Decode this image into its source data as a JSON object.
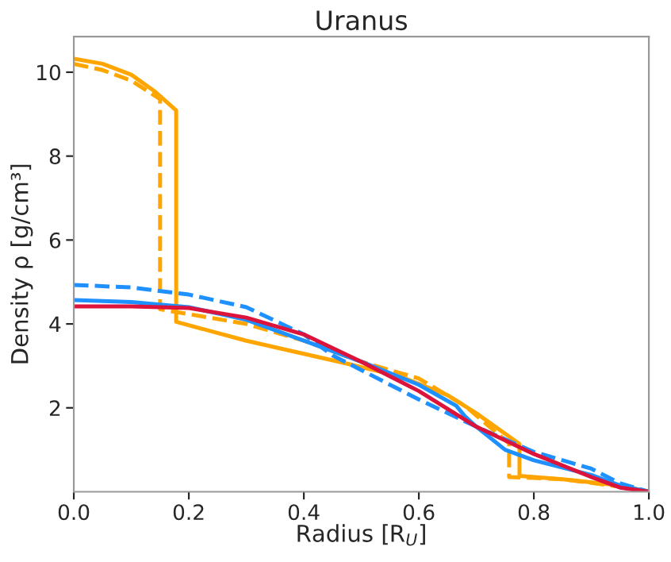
{
  "chart_data": {
    "type": "line",
    "title": "Uranus",
    "xlabel": "Radius [R$_{U}$]",
    "ylabel": "Density ρ [g/cm³]",
    "xlim": [
      0,
      1
    ],
    "ylim": [
      0,
      10.85
    ],
    "xticks": [
      {
        "value": 0,
        "label": "0.0"
      },
      {
        "value": 0.2,
        "label": "0.2"
      },
      {
        "value": 0.4,
        "label": "0.4"
      },
      {
        "value": 0.6,
        "label": "0.6"
      },
      {
        "value": 0.8,
        "label": "0.8"
      },
      {
        "value": 1,
        "label": "1.0"
      }
    ],
    "yticks": [
      2,
      4,
      6,
      8,
      10
    ],
    "grid": false,
    "legend": false,
    "marker": "none",
    "series": [
      {
        "color": "#ffa500",
        "line_style": "solid",
        "x": [
          0,
          0.05,
          0.1,
          0.14,
          0.178,
          0.178,
          0.3,
          0.467,
          0.567,
          0.65,
          0.7,
          0.775,
          0.775,
          0.85,
          0.95,
          1.0
        ],
        "values": [
          10.32,
          10.2,
          9.94,
          9.55,
          9.09,
          4.05,
          3.6,
          3.08,
          2.75,
          2.3,
          1.87,
          1.14,
          0.38,
          0.3,
          0.15,
          0.0
        ]
      },
      {
        "color": "#ffa500",
        "line_style": "dashed",
        "x": [
          0,
          0.05,
          0.1,
          0.15,
          0.15,
          0.3,
          0.4,
          0.5,
          0.6,
          0.68,
          0.757,
          0.757,
          0.85,
          0.95,
          1.0
        ],
        "values": [
          10.2,
          10.05,
          9.8,
          9.36,
          4.35,
          4.0,
          3.6,
          3.1,
          2.7,
          2.05,
          1.15,
          0.35,
          0.3,
          0.12,
          0.0
        ]
      },
      {
        "color": "#1e90ff",
        "line_style": "solid",
        "x": [
          0,
          0.1,
          0.2,
          0.3,
          0.4,
          0.5,
          0.6,
          0.665,
          0.68,
          0.7,
          0.75,
          0.8,
          0.9,
          0.95,
          1.0
        ],
        "values": [
          4.57,
          4.52,
          4.4,
          4.1,
          3.6,
          3.1,
          2.55,
          2.05,
          1.8,
          1.55,
          1.0,
          0.75,
          0.4,
          0.15,
          0.0
        ]
      },
      {
        "color": "#1e90ff",
        "line_style": "dashed",
        "x": [
          0,
          0.1,
          0.2,
          0.3,
          0.4,
          0.45,
          0.5,
          0.6,
          0.7,
          0.8,
          0.9,
          0.95,
          1.0
        ],
        "values": [
          4.93,
          4.87,
          4.7,
          4.4,
          3.75,
          3.25,
          2.9,
          2.2,
          1.55,
          0.95,
          0.55,
          0.2,
          0.0
        ]
      },
      {
        "color": "#dc143c",
        "line_style": "solid",
        "x": [
          0,
          0.1,
          0.2,
          0.3,
          0.4,
          0.5,
          0.6,
          0.7,
          0.8,
          0.9,
          0.95,
          1.0
        ],
        "values": [
          4.42,
          4.42,
          4.38,
          4.15,
          3.75,
          3.1,
          2.4,
          1.55,
          0.9,
          0.35,
          0.1,
          0.0
        ]
      }
    ]
  }
}
